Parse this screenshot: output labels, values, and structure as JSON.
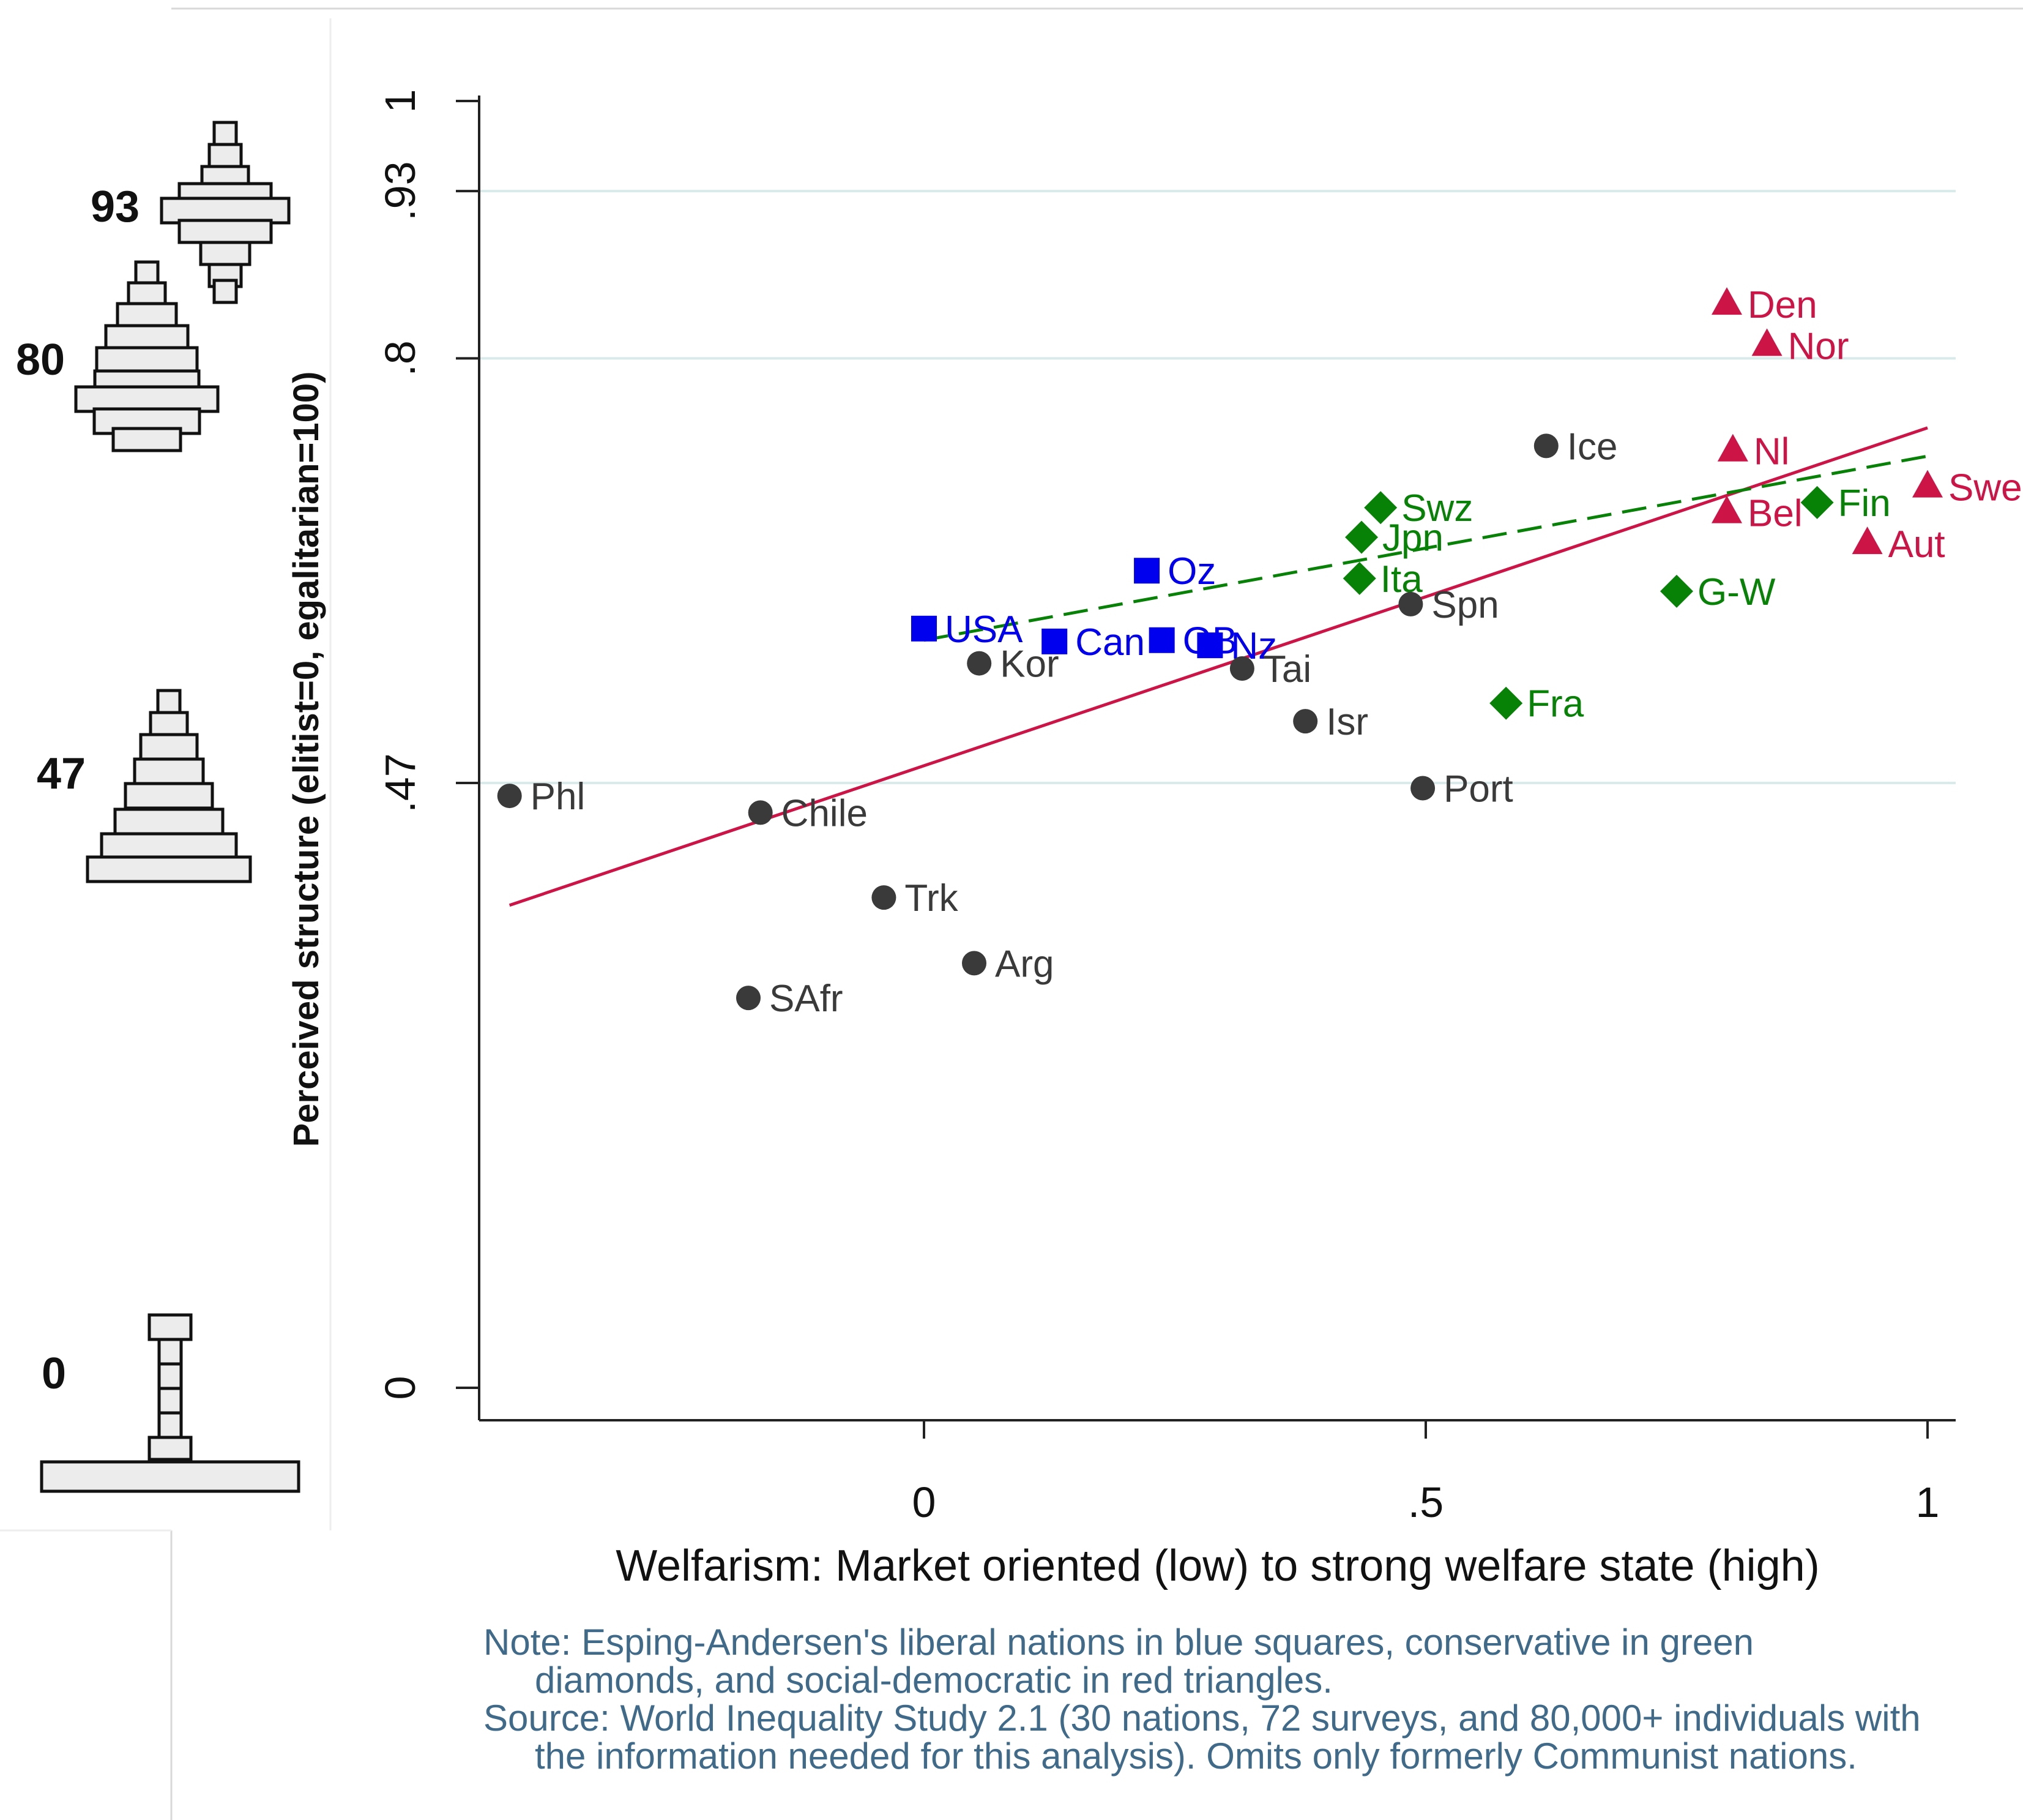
{
  "colors": {
    "liberal": "#0000ee",
    "conservative": "#078207",
    "social_democratic": "#cc1447",
    "other": "#3a3a3a",
    "fit_all": "#cc1447",
    "fit_welfare": "#078207",
    "note_text": "#3f6a8a",
    "grid": "#d9eaea"
  },
  "chart_data": {
    "type": "scatter",
    "xlabel": "Welfarism: Market oriented (low) to strong welfare state (high)",
    "ylabel": "Perceived structure (elitist=0, egalitarian=100)",
    "xlim": [
      -0.44,
      1.03
    ],
    "ylim": [
      -0.02,
      1.02
    ],
    "xticks": [
      {
        "value": 0,
        "label": "0"
      },
      {
        "value": 0.5,
        "label": ".5"
      },
      {
        "value": 1,
        "label": "1"
      }
    ],
    "yticks": [
      {
        "value": 0,
        "label": "0"
      },
      {
        "value": 0.47,
        "label": ".47"
      },
      {
        "value": 0.8,
        "label": ".8"
      },
      {
        "value": 0.93,
        "label": ".93"
      },
      {
        "value": 1,
        "label": "1"
      }
    ],
    "grid_y": [
      0.47,
      0.8,
      0.93
    ],
    "series": [
      {
        "name": "Liberal",
        "marker": "square",
        "color_key": "liberal",
        "points": [
          {
            "label": "USA",
            "x": 0.0,
            "y": 0.59
          },
          {
            "label": "Can",
            "x": 0.13,
            "y": 0.58
          },
          {
            "label": "GB",
            "x": 0.237,
            "y": 0.581
          },
          {
            "label": "Nz",
            "x": 0.285,
            "y": 0.577
          },
          {
            "label": "Oz",
            "x": 0.222,
            "y": 0.635
          }
        ]
      },
      {
        "name": "Conservative",
        "marker": "diamond",
        "color_key": "conservative",
        "points": [
          {
            "label": "Swz",
            "x": 0.455,
            "y": 0.684
          },
          {
            "label": "Jpn",
            "x": 0.436,
            "y": 0.661
          },
          {
            "label": "Ita",
            "x": 0.434,
            "y": 0.629
          },
          {
            "label": "Fra",
            "x": 0.58,
            "y": 0.532
          },
          {
            "label": "G-W",
            "x": 0.75,
            "y": 0.619
          },
          {
            "label": "Fin",
            "x": 0.89,
            "y": 0.688
          }
        ]
      },
      {
        "name": "Social-democratic",
        "marker": "triangle",
        "color_key": "social_democratic",
        "points": [
          {
            "label": "Den",
            "x": 0.8,
            "y": 0.842
          },
          {
            "label": "Nor",
            "x": 0.84,
            "y": 0.81
          },
          {
            "label": "Nl",
            "x": 0.806,
            "y": 0.728
          },
          {
            "label": "Bel",
            "x": 0.8,
            "y": 0.68
          },
          {
            "label": "Swe",
            "x": 1.0,
            "y": 0.7
          },
          {
            "label": "Aut",
            "x": 0.94,
            "y": 0.656
          }
        ]
      },
      {
        "name": "Other",
        "marker": "circle",
        "color_key": "other",
        "points": [
          {
            "label": "Ice",
            "x": 0.62,
            "y": 0.732
          },
          {
            "label": "Spn",
            "x": 0.485,
            "y": 0.609
          },
          {
            "label": "Kor",
            "x": 0.055,
            "y": 0.563
          },
          {
            "label": "Tai",
            "x": 0.317,
            "y": 0.559
          },
          {
            "label": "Isr",
            "x": 0.38,
            "y": 0.518
          },
          {
            "label": "Port",
            "x": 0.497,
            "y": 0.466
          },
          {
            "label": "Phl",
            "x": -0.413,
            "y": 0.46
          },
          {
            "label": "Chile",
            "x": -0.163,
            "y": 0.447
          },
          {
            "label": "Trk",
            "x": -0.04,
            "y": 0.381
          },
          {
            "label": "Arg",
            "x": 0.05,
            "y": 0.33
          },
          {
            "label": "SAfr",
            "x": -0.175,
            "y": 0.303
          }
        ]
      }
    ],
    "fit_lines": [
      {
        "name": "All nations",
        "style": "solid",
        "color_key": "fit_all",
        "x": [
          -0.413,
          1.0
        ],
        "y": [
          0.375,
          0.746
        ]
      },
      {
        "name": "Welfare nations",
        "style": "dashed",
        "color_key": "fit_welfare",
        "x": [
          0.0,
          1.0
        ],
        "y": [
          0.581,
          0.724
        ]
      }
    ],
    "pictograms": [
      {
        "label": "93",
        "shape": "diamond",
        "value": 0.93
      },
      {
        "label": "80",
        "shape": "pyramid",
        "value": 0.8
      },
      {
        "label": "47",
        "shape": "pyramid",
        "value": 0.47
      },
      {
        "label": "0",
        "shape": "inverted-T",
        "value": 0
      }
    ]
  },
  "note": {
    "line1": "Note: Esping-Andersen's liberal nations in blue squares, conservative in green",
    "line2": "diamonds, and social-democratic in red triangles.",
    "line3": "Source: World Inequality Study 2.1 (30 nations, 72 surveys, and 80,000+ individuals with",
    "line4": "the information needed for this analysis). Omits only formerly Communist nations."
  }
}
